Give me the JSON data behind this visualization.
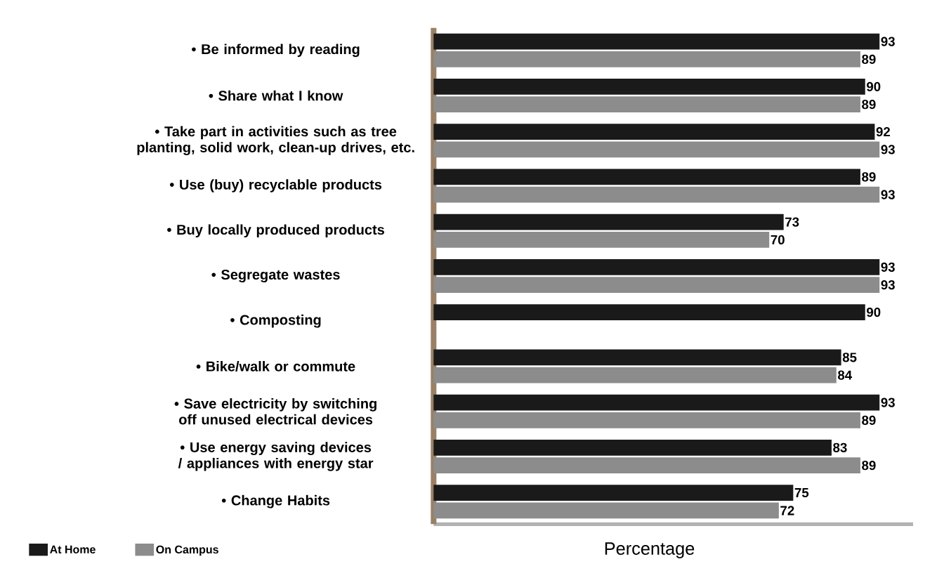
{
  "chart_data": {
    "type": "bar",
    "orientation": "horizontal",
    "xlabel": "Percentage",
    "categories": [
      "• Be informed by reading",
      "• Share what I know",
      "• Take part in activities such as tree planting, solid work, clean-up drives, etc.",
      "• Use (buy) recyclable products",
      "• Buy locally produced products",
      "• Segregate wastes",
      "• Composting",
      "• Bike/walk or commute",
      "• Save electricity by switching off unused electrical devices",
      "• Use energy saving devices / appliances with energy star",
      "• Change Habits"
    ],
    "series": [
      {
        "name": "At Home",
        "color": "#1a1a1a",
        "values": [
          93,
          90,
          92,
          89,
          73,
          93,
          90,
          85,
          93,
          83,
          75
        ]
      },
      {
        "name": "On Campus",
        "color": "#8c8c8c",
        "values": [
          89,
          89,
          93,
          93,
          70,
          93,
          null,
          84,
          89,
          89,
          72
        ]
      }
    ],
    "xlim": [
      0,
      100
    ],
    "data_labels": true,
    "legend": "bottom left"
  }
}
